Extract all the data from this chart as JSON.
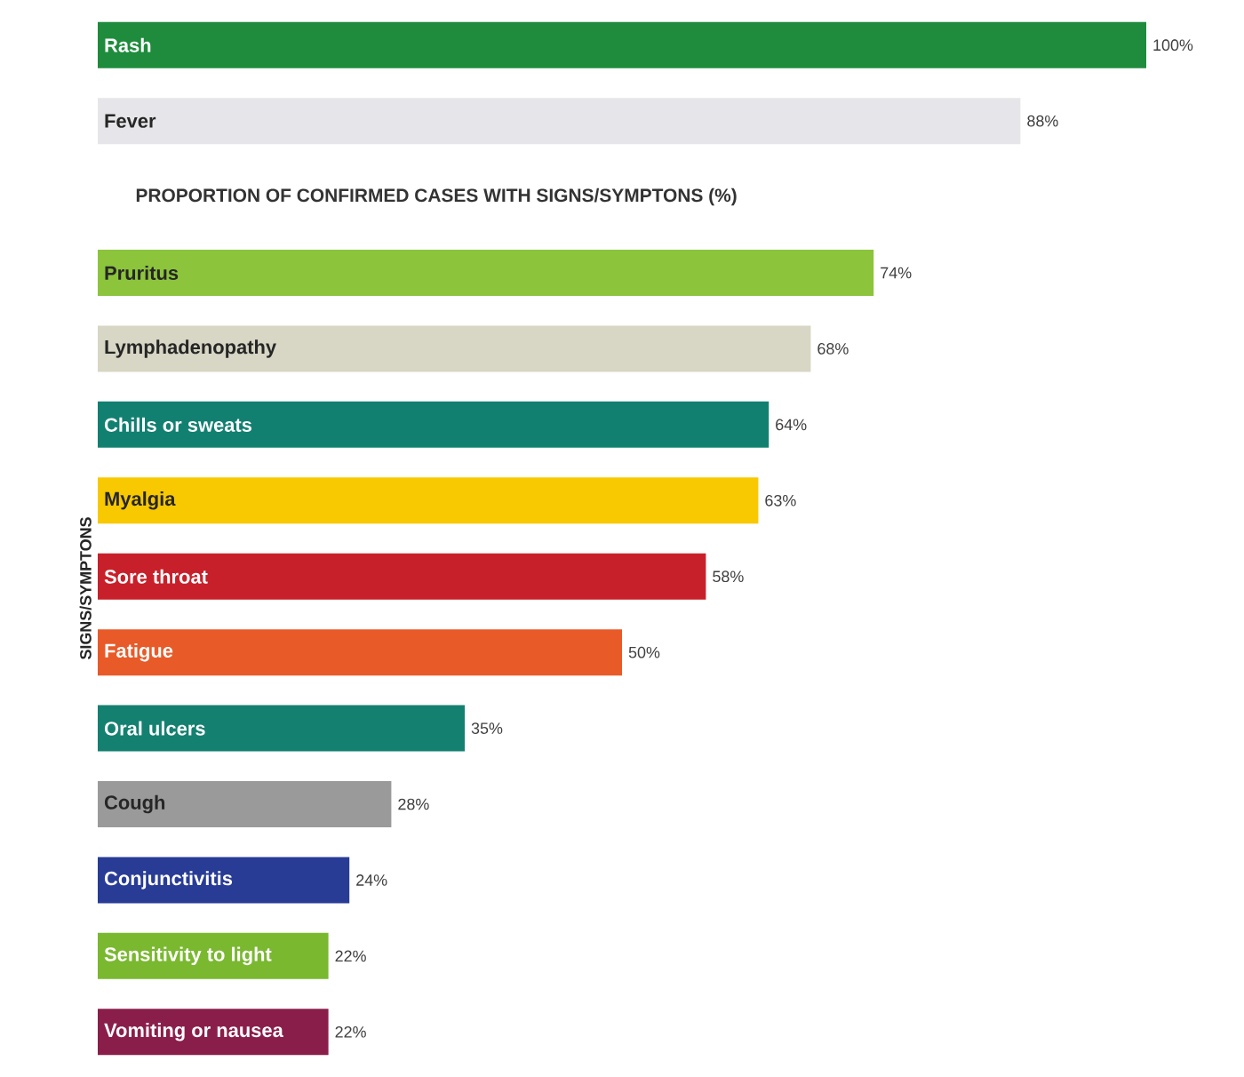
{
  "chart_data": {
    "type": "bar",
    "orientation": "horizontal",
    "title": "PROPORTION OF CONFIRMED CASES  WITH SIGNS/SYMPTONS (%)",
    "ylabel": "SIGNS/SYMPTONS",
    "categories": [
      "Rash",
      "Fever",
      "Pruritus",
      "Lymphadenopathy",
      "Chills or sweats",
      "Myalgia",
      "Sore throat",
      "Fatigue",
      "Oral ulcers",
      "Cough",
      "Conjunctivitis",
      "Sensitivity to light",
      "Vomiting or nausea"
    ],
    "values": [
      100,
      88,
      74,
      68,
      64,
      63,
      58,
      50,
      35,
      28,
      24,
      22,
      22
    ],
    "value_labels": [
      "100%",
      "88%",
      "74%",
      "68%",
      "64%",
      "63%",
      "58%",
      "50%",
      "35%",
      "28%",
      "24%",
      "22%",
      "22%"
    ],
    "colors": [
      "#1e8c3c",
      "#e6e6ea",
      "#8cc43c",
      "#d8d6c4",
      "#128070",
      "#f8c800",
      "#c8202a",
      "#e85a28",
      "#148070",
      "#9a9a9a",
      "#283c96",
      "#7ab830",
      "#8a1e4a"
    ]
  }
}
